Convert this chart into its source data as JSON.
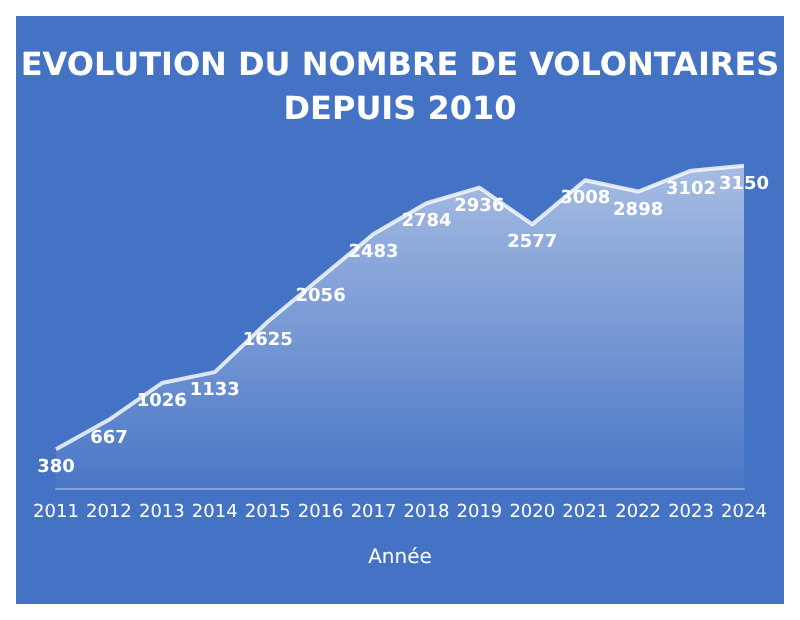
{
  "chart_data": {
    "type": "area",
    "title": "EVOLUTION DU NOMBRE DE VOLONTAIRES\nDEPUIS 2010",
    "xlabel": "Année",
    "categories": [
      "2011",
      "2012",
      "2013",
      "2014",
      "2015",
      "2016",
      "2017",
      "2018",
      "2019",
      "2020",
      "2021",
      "2022",
      "2023",
      "2024"
    ],
    "values": [
      380,
      667,
      1026,
      1133,
      1625,
      2056,
      2483,
      2784,
      2936,
      2577,
      3008,
      2898,
      3102,
      3150
    ],
    "color": "#ffffff",
    "data_labels": true,
    "grid": false,
    "tick_labels": "x"
  }
}
